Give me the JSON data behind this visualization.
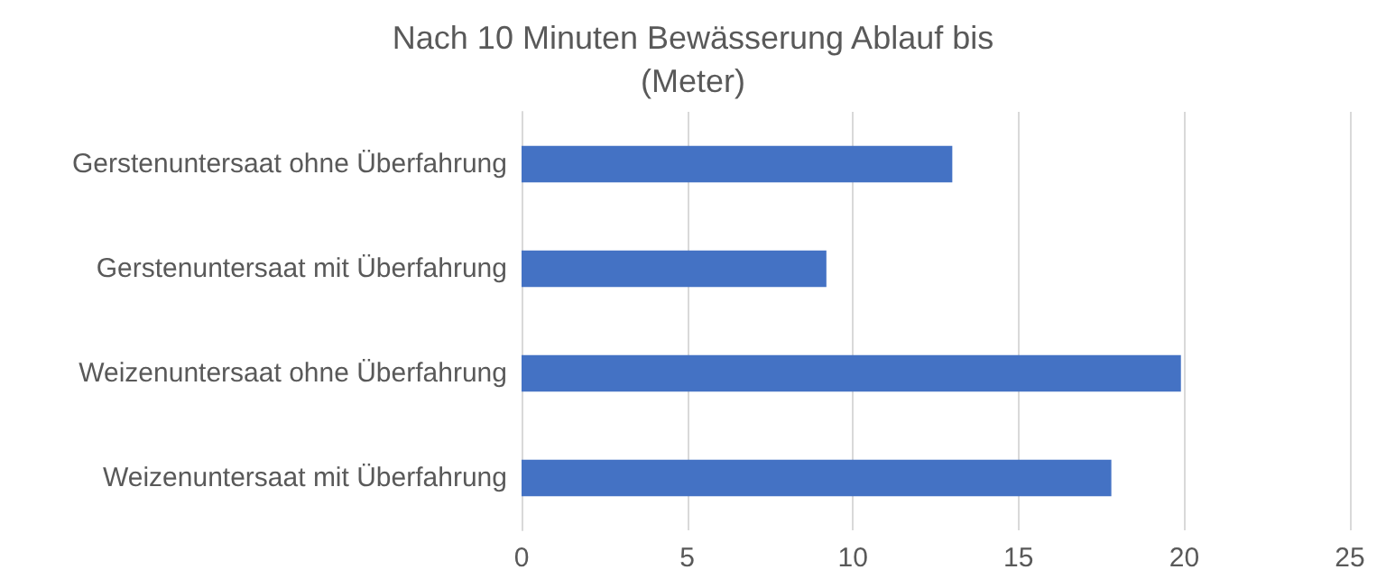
{
  "chart_data": {
    "type": "bar",
    "orientation": "horizontal",
    "title": "Nach 10 Minuten Bewässerung Ablauf bis\n(Meter)",
    "categories": [
      "Gerstenuntersaat ohne Überfahrung",
      "Gerstenuntersaat mit Überfahrung",
      "Weizenuntersaat ohne Überfahrung",
      "Weizenuntersaat mit Überfahrung"
    ],
    "values": [
      13.0,
      9.2,
      19.9,
      17.8
    ],
    "color": "#4472c4",
    "xlim": [
      0,
      25
    ],
    "xticks": [
      0,
      5,
      10,
      15,
      20,
      25
    ],
    "grid": "x"
  }
}
